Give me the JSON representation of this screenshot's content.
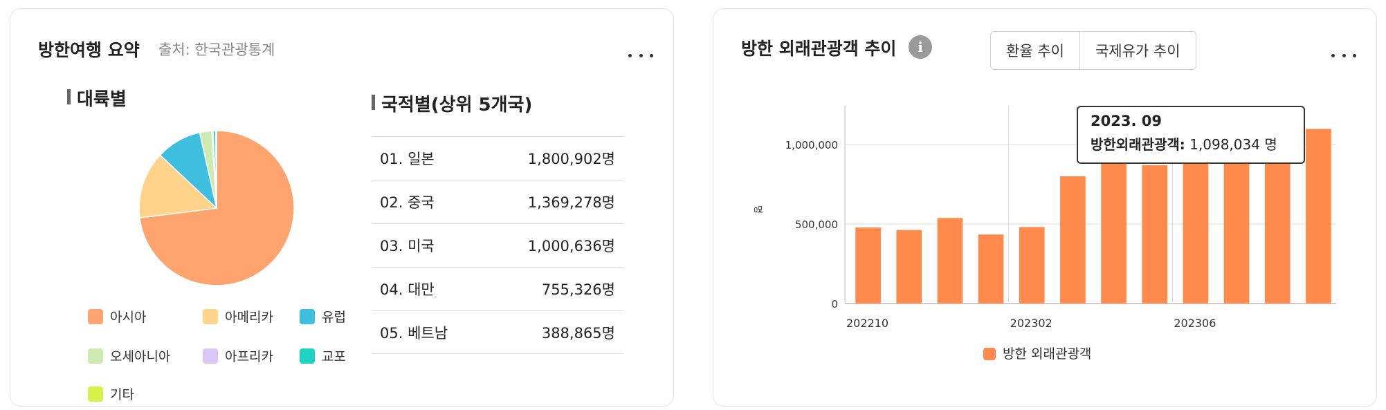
{
  "summary_card": {
    "title": "방한여행 요약",
    "source": "출처: 한국관광통계",
    "continent_section": {
      "title": "대륙별",
      "legend": [
        {
          "label": "아시아",
          "color": "#FFA46E"
        },
        {
          "label": "아메리카",
          "color": "#FFD38A"
        },
        {
          "label": "유럽",
          "color": "#3FBFE0"
        },
        {
          "label": "오세아니아",
          "color": "#CDEBB0"
        },
        {
          "label": "아프리카",
          "color": "#D9C7F7"
        },
        {
          "label": "교포",
          "color": "#1FD3C3"
        },
        {
          "label": "기타",
          "color": "#D8F04A"
        }
      ]
    },
    "nationality_section": {
      "title": "국적별(상위 5개국)",
      "rows": [
        {
          "name": "01. 일본",
          "value": "1,800,902명"
        },
        {
          "name": "02. 중국",
          "value": "1,369,278명"
        },
        {
          "name": "03. 미국",
          "value": "1,000,636명"
        },
        {
          "name": "04. 대만",
          "value": "755,326명"
        },
        {
          "name": "05. 베트남",
          "value": "388,865명"
        }
      ]
    }
  },
  "trend_card": {
    "title": "방한 외래관광객 추이",
    "info_icon": "i",
    "buttons": [
      "환율 추이",
      "국제유가 추이"
    ],
    "tooltip": {
      "date": "2023. 09",
      "label": "방한외래관광객:",
      "value": "1,098,034 명"
    }
  },
  "chart_data": [
    {
      "type": "pie",
      "categories": [
        "아시아",
        "아메리카",
        "유럽",
        "오세아니아",
        "아프리카",
        "교포",
        "기타"
      ],
      "values": [
        73.0,
        14.0,
        9.5,
        2.5,
        0.3,
        0.5,
        0.2
      ],
      "colors": [
        "#FFA46E",
        "#FFD38A",
        "#3FBFE0",
        "#CDEBB0",
        "#D9C7F7",
        "#1FD3C3",
        "#D8F04A"
      ]
    },
    {
      "type": "bar",
      "categories": [
        "202210",
        "202211",
        "202212",
        "202301",
        "202302",
        "202303",
        "202304",
        "202305",
        "202306",
        "202307",
        "202308",
        "202309"
      ],
      "x_tick_labels": [
        "202210",
        "202302",
        "202306"
      ],
      "series": [
        {
          "name": "방한 외래관광객",
          "color": "#FF8A4C",
          "values": [
            478000,
            462000,
            538000,
            434000,
            481000,
            800000,
            910000,
            870000,
            930000,
            1030000,
            1080000,
            1098034
          ]
        }
      ],
      "ylabel": "명",
      "ylim": [
        0,
        1200000
      ],
      "yticks": [
        {
          "value": 0,
          "label": "0"
        },
        {
          "value": 500000,
          "label": "500,000"
        },
        {
          "value": 1000000,
          "label": "1,000,000"
        }
      ],
      "legend": "bottom",
      "grid": true
    }
  ]
}
